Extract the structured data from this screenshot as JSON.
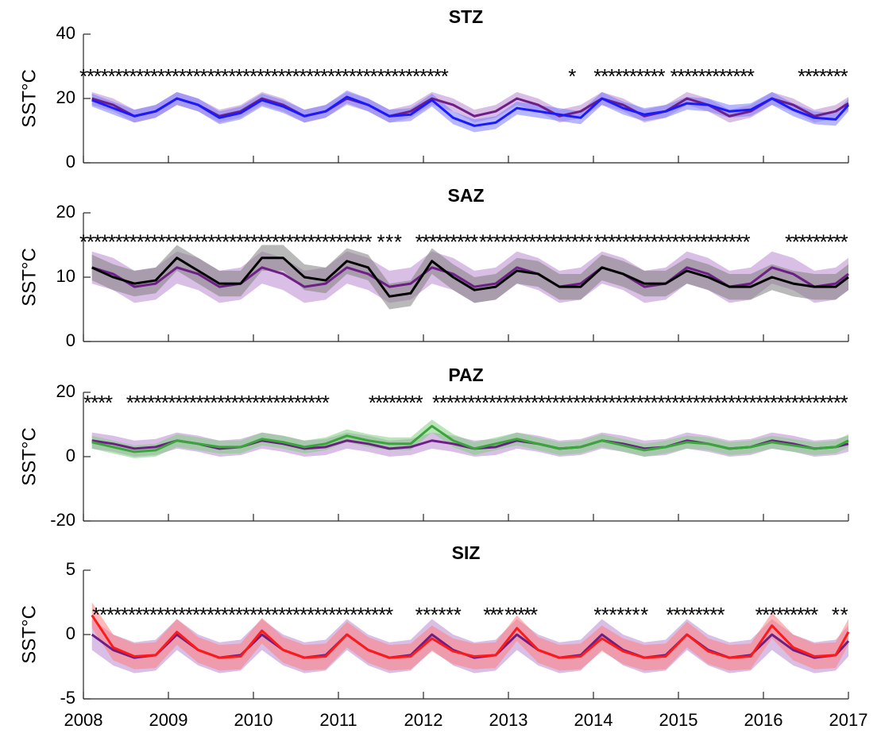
{
  "chart_data": [
    {
      "type": "line",
      "title": "STZ",
      "y_label": "SST°C",
      "marker": "*",
      "x": [
        2008.1,
        2008.35,
        2008.6,
        2008.85,
        2009.1,
        2009.35,
        2009.6,
        2009.85,
        2010.1,
        2010.35,
        2010.6,
        2010.85,
        2011.1,
        2011.35,
        2011.6,
        2011.85,
        2012.1,
        2012.35,
        2012.6,
        2012.85,
        2013.1,
        2013.35,
        2013.6,
        2013.85,
        2014.1,
        2014.35,
        2014.6,
        2014.85,
        2015.1,
        2015.35,
        2015.6,
        2015.85,
        2016.1,
        2016.35,
        2016.6,
        2016.85,
        2017
      ],
      "series": [
        {
          "color": "#6d1f86",
          "band_color": "#b98ad0",
          "band": 2,
          "values": [
            20,
            18,
            14.5,
            16,
            20,
            18,
            14.5,
            16,
            20,
            18,
            14.5,
            16,
            20,
            18,
            14.5,
            16,
            20,
            18,
            14.5,
            16,
            20,
            18,
            14.5,
            16,
            20,
            18,
            14.5,
            16,
            20,
            18,
            14.5,
            16,
            20,
            18,
            14.5,
            16,
            18.5
          ]
        },
        {
          "color": "#1a1aff",
          "band_color": "#7b7bff",
          "band": 2,
          "values": [
            19.5,
            17,
            14.5,
            16,
            20,
            18,
            14,
            15.5,
            19.5,
            17.5,
            14.5,
            16,
            20.5,
            18,
            14.5,
            15,
            19.5,
            14,
            11.5,
            12.5,
            17,
            16,
            15,
            14,
            20,
            17,
            15,
            16,
            18.5,
            18,
            16,
            16.5,
            20,
            16.5,
            14,
            13.5,
            18
          ]
        }
      ],
      "significant": [
        [
          2008.0,
          2012.25
        ],
        [
          2013.75,
          2013.75
        ],
        [
          2014.05,
          2014.8
        ],
        [
          2014.95,
          2015.85
        ],
        [
          2016.45,
          2016.95
        ]
      ],
      "xlim": [
        2008,
        2017
      ],
      "xticks": [
        2008,
        2009,
        2010,
        2011,
        2012,
        2013,
        2014,
        2015,
        2016,
        2017
      ],
      "ylim": [
        0,
        40
      ],
      "yticks": [
        0,
        20,
        40
      ]
    },
    {
      "type": "line",
      "title": "SAZ",
      "y_label": "SST°C",
      "marker": "*",
      "x": [
        2008.1,
        2008.35,
        2008.6,
        2008.85,
        2009.1,
        2009.35,
        2009.6,
        2009.85,
        2010.1,
        2010.35,
        2010.6,
        2010.85,
        2011.1,
        2011.35,
        2011.6,
        2011.85,
        2012.1,
        2012.35,
        2012.6,
        2012.85,
        2013.1,
        2013.35,
        2013.6,
        2013.85,
        2014.1,
        2014.35,
        2014.6,
        2014.85,
        2015.1,
        2015.35,
        2015.6,
        2015.85,
        2016.1,
        2016.35,
        2016.6,
        2016.85,
        2017
      ],
      "series": [
        {
          "color": "#6d1f86",
          "band_color": "#b98ad0",
          "band": 2.5,
          "values": [
            11.5,
            10.5,
            8.5,
            9,
            11.5,
            10.5,
            8.5,
            9,
            11.5,
            10.5,
            8.5,
            9,
            11.5,
            10.5,
            8.5,
            9,
            11.5,
            10.5,
            8.5,
            9,
            11.5,
            10.5,
            8.5,
            9,
            11.5,
            10.5,
            8.5,
            9,
            11.5,
            10.5,
            8.5,
            9,
            11.5,
            10.5,
            8.5,
            9,
            10.5
          ]
        },
        {
          "color": "#000000",
          "band_color": "#7f7f7f",
          "band": 2,
          "values": [
            11.5,
            10,
            9,
            9.5,
            13,
            11,
            9,
            9,
            13,
            13,
            10,
            9.5,
            12.5,
            11.5,
            7,
            7.5,
            12.5,
            10,
            8,
            8.5,
            11,
            10.5,
            8.5,
            8.5,
            11.5,
            10.5,
            9,
            9,
            11,
            10,
            8.5,
            8.5,
            10,
            9,
            8.5,
            8.5,
            10
          ]
        }
      ],
      "significant": [
        [
          2008.0,
          2011.35
        ],
        [
          2011.5,
          2011.7
        ],
        [
          2011.95,
          2012.6
        ],
        [
          2012.7,
          2013.95
        ],
        [
          2014.05,
          2015.8
        ],
        [
          2016.3,
          2016.95
        ]
      ],
      "xlim": [
        2008,
        2017
      ],
      "xticks": [
        2008,
        2009,
        2010,
        2011,
        2012,
        2013,
        2014,
        2015,
        2016,
        2017
      ],
      "ylim": [
        0,
        20
      ],
      "yticks": [
        0,
        10,
        20
      ]
    },
    {
      "type": "line",
      "title": "PAZ",
      "y_label": "SST°C",
      "marker": "*",
      "x": [
        2008.1,
        2008.35,
        2008.6,
        2008.85,
        2009.1,
        2009.35,
        2009.6,
        2009.85,
        2010.1,
        2010.35,
        2010.6,
        2010.85,
        2011.1,
        2011.35,
        2011.6,
        2011.85,
        2012.1,
        2012.35,
        2012.6,
        2012.85,
        2013.1,
        2013.35,
        2013.6,
        2013.85,
        2014.1,
        2014.35,
        2014.6,
        2014.85,
        2015.1,
        2015.35,
        2015.6,
        2015.85,
        2016.1,
        2016.35,
        2016.6,
        2016.85,
        2017
      ],
      "series": [
        {
          "color": "#6d1f86",
          "band_color": "#b98ad0",
          "band": 2.5,
          "values": [
            5,
            4,
            2.5,
            3,
            5,
            4,
            2.5,
            3,
            5,
            4,
            2.5,
            3,
            5,
            4,
            2.5,
            3,
            5,
            4,
            2.5,
            3,
            5,
            4,
            2.5,
            3,
            5,
            4,
            2.5,
            3,
            5,
            4,
            2.5,
            3,
            5,
            4,
            2.5,
            3,
            4
          ]
        },
        {
          "color": "#3aa53a",
          "band_color": "#7fcf7f",
          "band": 2,
          "values": [
            4.5,
            3,
            1.5,
            2,
            5,
            4,
            3,
            3,
            5.5,
            4.5,
            3,
            4,
            6.5,
            5,
            4,
            4,
            9.5,
            5,
            2.5,
            4,
            5.5,
            4,
            2.5,
            3,
            5,
            3.5,
            2,
            3,
            4.5,
            4,
            2.5,
            3,
            4.5,
            3.5,
            2.5,
            3,
            5
          ]
        }
      ],
      "significant": [
        [
          2008.05,
          2008.3
        ],
        [
          2008.55,
          2010.85
        ],
        [
          2011.4,
          2011.95
        ],
        [
          2012.15,
          2016.95
        ]
      ],
      "xlim": [
        2008,
        2017
      ],
      "xticks": [
        2008,
        2009,
        2010,
        2011,
        2012,
        2013,
        2014,
        2015,
        2016,
        2017
      ],
      "ylim": [
        -20,
        20
      ],
      "yticks": [
        -20,
        0,
        20
      ]
    },
    {
      "type": "line",
      "title": "SIZ",
      "y_label": "SST°C",
      "marker": "*",
      "x": [
        2008.1,
        2008.35,
        2008.6,
        2008.85,
        2009.1,
        2009.35,
        2009.6,
        2009.85,
        2010.1,
        2010.35,
        2010.6,
        2010.85,
        2011.1,
        2011.35,
        2011.6,
        2011.85,
        2012.1,
        2012.35,
        2012.6,
        2012.85,
        2013.1,
        2013.35,
        2013.6,
        2013.85,
        2014.1,
        2014.35,
        2014.6,
        2014.85,
        2015.1,
        2015.35,
        2015.6,
        2015.85,
        2016.1,
        2016.35,
        2016.6,
        2016.85,
        2017
      ],
      "series": [
        {
          "color": "#6d1f86",
          "band_color": "#b98ad0",
          "band": 1.2,
          "values": [
            0,
            -1.2,
            -1.8,
            -1.6,
            0,
            -1.2,
            -1.8,
            -1.6,
            0,
            -1.2,
            -1.8,
            -1.6,
            0,
            -1.2,
            -1.8,
            -1.6,
            0,
            -1.2,
            -1.8,
            -1.6,
            0,
            -1.2,
            -1.8,
            -1.6,
            0,
            -1.2,
            -1.8,
            -1.6,
            0,
            -1.2,
            -1.8,
            -1.6,
            0,
            -1.2,
            -1.8,
            -1.6,
            -0.5
          ]
        },
        {
          "color": "#ff1a1a",
          "band_color": "#ff8080",
          "band": 1,
          "values": [
            1.5,
            -1,
            -1.7,
            -1.6,
            0.2,
            -1.2,
            -1.8,
            -1.7,
            0.3,
            -1.2,
            -1.8,
            -1.7,
            0,
            -1.2,
            -1.8,
            -1.7,
            -0.3,
            -1.3,
            -1.7,
            -1.6,
            0.5,
            -1.2,
            -1.8,
            -1.7,
            -0.3,
            -1.3,
            -1.8,
            -1.7,
            0,
            -1.3,
            -1.8,
            -1.7,
            0.7,
            -1,
            -1.7,
            -1.6,
            0.2
          ]
        }
      ],
      "significant": [
        [
          2008.15,
          2011.6
        ],
        [
          2011.95,
          2012.4
        ],
        [
          2012.75,
          2012.9
        ],
        [
          2013.0,
          2013.3
        ],
        [
          2014.05,
          2014.5
        ],
        [
          2014.6,
          2014.6
        ],
        [
          2014.9,
          2015.5
        ],
        [
          2015.95,
          2016.6
        ],
        [
          2016.85,
          2016.95
        ]
      ],
      "xlim": [
        2008,
        2017
      ],
      "xticks": [
        2008,
        2009,
        2010,
        2011,
        2012,
        2013,
        2014,
        2015,
        2016,
        2017
      ],
      "ylim": [
        -5,
        5
      ],
      "yticks": [
        -5,
        0,
        5
      ]
    }
  ]
}
